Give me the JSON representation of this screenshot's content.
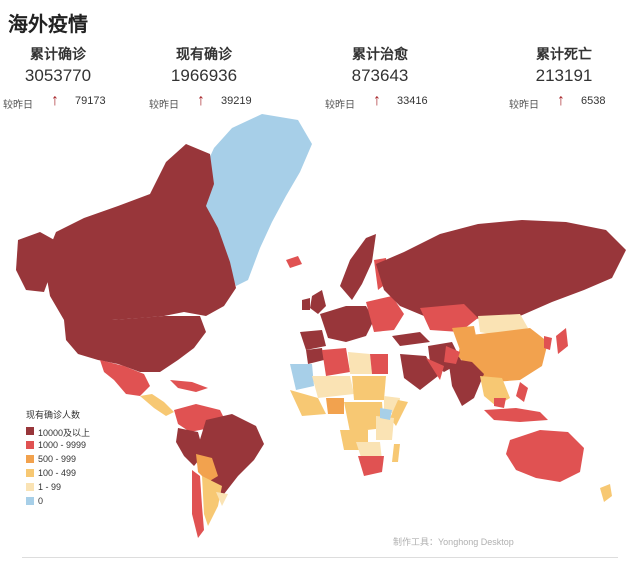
{
  "title": "海外疫情",
  "stats": [
    {
      "label": "累计确诊",
      "value": "3053770",
      "delta_label": "较昨日",
      "delta_arrow": "↑",
      "delta": "79173"
    },
    {
      "label": "现有确诊",
      "value": "1966936",
      "delta_label": "较昨日",
      "delta_arrow": "↑",
      "delta": "39219"
    },
    {
      "label": "累计治愈",
      "value": "873643",
      "delta_label": "较昨日",
      "delta_arrow": "↑",
      "delta": "33416"
    },
    {
      "label": "累计死亡",
      "value": "213191",
      "delta_label": "较昨日",
      "delta_arrow": "↑",
      "delta": "6538"
    }
  ],
  "legend": {
    "title": "现有确诊人数",
    "items": [
      {
        "label": "10000及以上",
        "color": "#98363a"
      },
      {
        "label": "1000 - 9999",
        "color": "#e05252"
      },
      {
        "label": "500 - 999",
        "color": "#f2a24e"
      },
      {
        "label": "100 - 499",
        "color": "#f7c873"
      },
      {
        "label": "1 - 99",
        "color": "#fae3b4"
      },
      {
        "label": "0",
        "color": "#a7cfe8"
      }
    ]
  },
  "credit": "制作工具：Yonghong Desktop"
}
